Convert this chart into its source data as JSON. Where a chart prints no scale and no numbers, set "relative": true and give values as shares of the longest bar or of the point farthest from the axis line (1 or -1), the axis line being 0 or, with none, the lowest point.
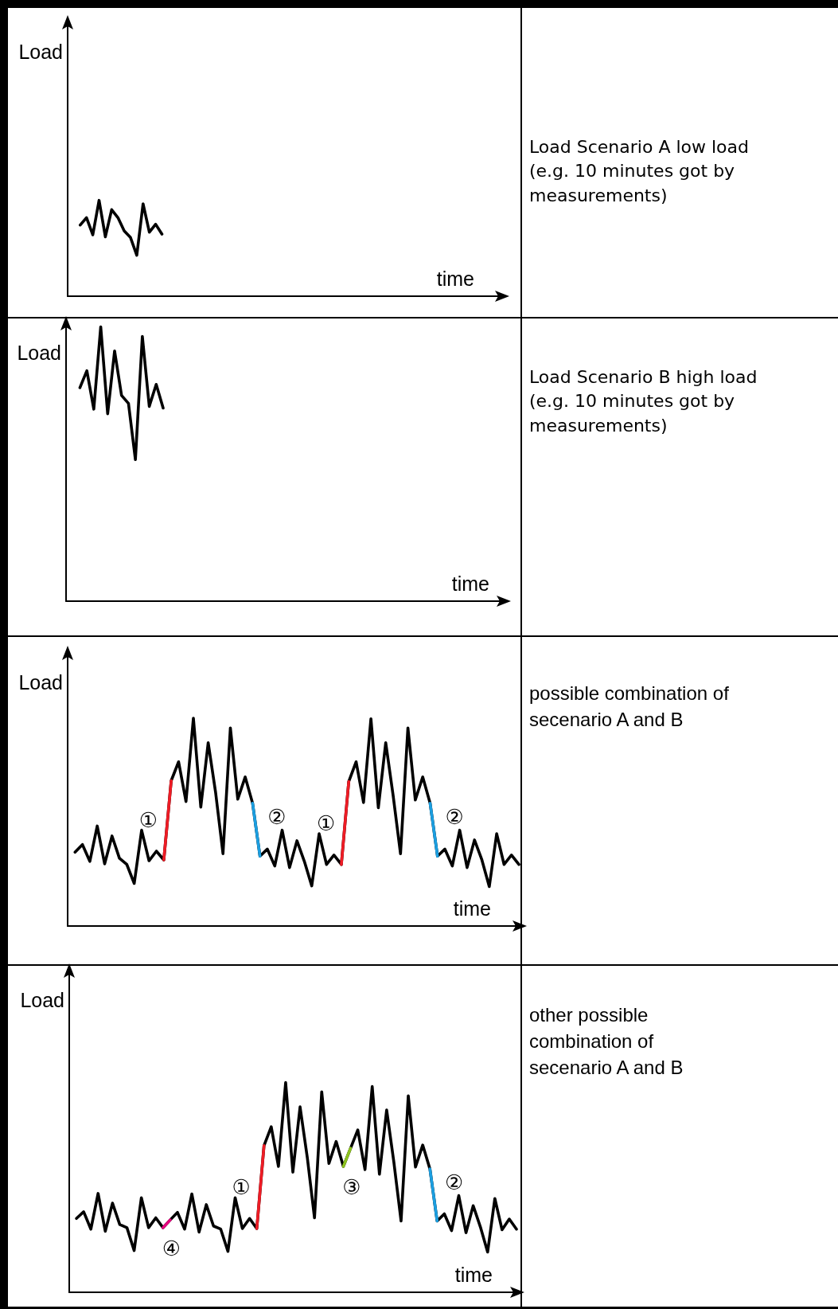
{
  "chart_data": [
    {
      "type": "line",
      "relative": true,
      "xlabel": "time",
      "ylabel": "Load",
      "tick_labels": false,
      "annotations": [
        "Load Scenario A low load (e.g. 10 minutes got by measurements)"
      ],
      "categories": [
        null,
        null,
        null,
        null,
        null,
        null,
        null,
        null,
        null,
        null,
        null,
        null,
        null,
        null,
        null,
        null,
        null,
        null,
        null,
        null,
        null,
        null,
        null,
        null,
        null,
        null,
        null,
        null,
        null,
        null,
        null,
        null,
        null,
        null,
        null,
        null,
        null,
        null,
        null,
        null,
        null,
        null,
        null,
        null,
        null,
        null,
        null,
        null,
        null,
        null,
        null,
        null,
        null,
        null,
        null,
        null,
        null,
        null,
        null,
        null,
        null,
        null,
        null,
        null,
        null,
        null,
        null,
        null,
        null,
        null
      ],
      "series": [
        {
          "color": "#000000",
          "values": [
            null,
            null,
            0.742,
            0.82,
            0.64,
            1,
            0.62,
            0.903,
            0.82,
            0.681,
            0.612,
            0.427,
            0.964,
            0.668,
            0.751,
            0.648,
            null,
            null,
            null,
            null,
            null,
            null,
            null,
            null,
            null,
            null,
            null,
            null,
            null,
            null,
            null,
            null,
            null,
            null,
            null,
            null,
            null,
            null,
            null,
            null,
            null,
            null,
            null,
            null,
            null,
            null,
            null,
            null,
            null,
            null,
            null,
            null,
            null,
            null,
            null,
            null,
            null,
            null,
            null,
            null,
            null,
            null,
            null,
            null,
            null,
            null,
            null,
            null,
            null,
            null
          ]
        }
      ]
    },
    {
      "type": "line",
      "relative": true,
      "xlabel": "time",
      "ylabel": "Load",
      "tick_labels": false,
      "annotations": [
        "Load Scenario B high load (e.g. 10 minutes got by measurements)"
      ],
      "categories": [
        null,
        null,
        null,
        null,
        null,
        null,
        null,
        null,
        null,
        null,
        null,
        null,
        null,
        null,
        null,
        null,
        null,
        null,
        null,
        null,
        null,
        null,
        null,
        null,
        null,
        null,
        null,
        null,
        null,
        null,
        null,
        null,
        null,
        null,
        null,
        null,
        null,
        null,
        null,
        null,
        null,
        null,
        null,
        null,
        null,
        null,
        null,
        null,
        null,
        null,
        null,
        null,
        null,
        null,
        null,
        null,
        null,
        null,
        null,
        null,
        null,
        null,
        null,
        null
      ],
      "series": [
        {
          "color": "#000000",
          "values": [
            null,
            null,
            0.778,
            0.84,
            0.7,
            1,
            0.683,
            0.912,
            0.75,
            0.721,
            0.516,
            0.965,
            0.71,
            0.79,
            0.704,
            null,
            null,
            null,
            null,
            null,
            null,
            null,
            null,
            null,
            null,
            null,
            null,
            null,
            null,
            null,
            null,
            null,
            null,
            null,
            null,
            null,
            null,
            null,
            null,
            null,
            null,
            null,
            null,
            null,
            null,
            null,
            null,
            null,
            null,
            null,
            null,
            null,
            null,
            null,
            null,
            null,
            null,
            null,
            null,
            null,
            null,
            null,
            null,
            null
          ]
        }
      ]
    },
    {
      "type": "line",
      "relative": true,
      "xlabel": "time",
      "ylabel": "Load",
      "tick_labels": false,
      "annotations": [
        "possible combination of secenario A and B"
      ],
      "categories": [
        null,
        null,
        null,
        null,
        null,
        null,
        null,
        null,
        null,
        null,
        null,
        null,
        null,
        null,
        null,
        null,
        null,
        null,
        null,
        null,
        null,
        null,
        null,
        null,
        null,
        null,
        null,
        null,
        null,
        null,
        null,
        null,
        null,
        null,
        null,
        null,
        null,
        null,
        null,
        null,
        null,
        null,
        null,
        null,
        null,
        null,
        null,
        null,
        null,
        null,
        null,
        null,
        null,
        null,
        null,
        null,
        null,
        null,
        null,
        null,
        null,
        null
      ],
      "series": [
        {
          "color": "#000000",
          "values": [
            null,
            0.355,
            0.392,
            0.311,
            0.481,
            0.299,
            0.433,
            0.326,
            0.296,
            0.205,
            0.461,
            0.314,
            0.36,
            0.318,
            0.699,
            0.79,
            0.599,
            1,
            0.572,
            0.882,
            0.643,
            0.348,
            0.953,
            0.61,
            0.717,
            0.591,
            0.336,
            0.37,
            0.289,
            0.461,
            0.281,
            0.41,
            0.311,
            0.193,
            0.444,
            0.296,
            0.341,
            0.296,
            0.695,
            0.79,
            0.594,
            0.997,
            0.569,
            0.882,
            0.628,
            0.348,
            0.953,
            0.606,
            0.717,
            0.591,
            0.336,
            0.37,
            0.289,
            0.461,
            0.281,
            0.414,
            0.318,
            0.19,
            0.444,
            0.296,
            0.341,
            0.296
          ]
        },
        {
          "name": "①",
          "color": "#ee1c25",
          "values": [
            null,
            null,
            null,
            null,
            null,
            null,
            null,
            null,
            null,
            null,
            null,
            null,
            null,
            0.318,
            0.699,
            null,
            null,
            null,
            null,
            null,
            null,
            null,
            null,
            null,
            null,
            null,
            null,
            null,
            null,
            null,
            null,
            null,
            null,
            null,
            null,
            null,
            null,
            0.296,
            0.695,
            null,
            null,
            null,
            null,
            null,
            null,
            null,
            null,
            null,
            null,
            null,
            null,
            null,
            null,
            null,
            null,
            null,
            null,
            null,
            null,
            null,
            null,
            null
          ]
        },
        {
          "name": "②",
          "color": "#1b9ee0",
          "values": [
            null,
            null,
            null,
            null,
            null,
            null,
            null,
            null,
            null,
            null,
            null,
            null,
            null,
            null,
            null,
            null,
            null,
            null,
            null,
            null,
            null,
            null,
            null,
            null,
            null,
            0.591,
            0.336,
            null,
            null,
            null,
            null,
            null,
            null,
            null,
            null,
            null,
            null,
            null,
            null,
            null,
            null,
            null,
            null,
            null,
            null,
            null,
            null,
            null,
            null,
            0.591,
            0.336,
            null,
            null,
            null,
            null,
            null,
            null,
            null,
            null,
            null,
            null,
            null
          ]
        }
      ]
    },
    {
      "type": "line",
      "relative": true,
      "xlabel": "time",
      "ylabel": "Load",
      "tick_labels": false,
      "annotations": [
        "other possible combination of secenario A and B"
      ],
      "categories": [
        null,
        null,
        null,
        null,
        null,
        null,
        null,
        null,
        null,
        null,
        null,
        null,
        null,
        null,
        null,
        null,
        null,
        null,
        null,
        null,
        null,
        null,
        null,
        null,
        null,
        null,
        null,
        null,
        null,
        null,
        null,
        null,
        null,
        null,
        null,
        null,
        null,
        null,
        null,
        null,
        null,
        null,
        null,
        null,
        null,
        null,
        null,
        null,
        null,
        null,
        null,
        null,
        null,
        null,
        null,
        null,
        null,
        null,
        null,
        null,
        null,
        null,
        null
      ],
      "series": [
        {
          "color": "#000000",
          "values": [
            null,
            0.352,
            0.384,
            0.301,
            0.471,
            0.291,
            0.425,
            0.323,
            0.308,
            0.199,
            0.451,
            0.308,
            0.355,
            0.308,
            0.345,
            0.381,
            0.301,
            0.469,
            0.287,
            0.418,
            0.316,
            0.301,
            0.195,
            0.451,
            0.304,
            0.352,
            0.304,
            0.699,
            0.789,
            0.6,
            1,
            0.573,
            0.884,
            0.643,
            0.355,
            0.956,
            0.614,
            0.719,
            0.6,
            0.687,
            0.774,
            0.585,
            0.981,
            0.563,
            0.869,
            0.621,
            0.34,
            0.937,
            0.597,
            0.702,
            0.588,
            0.34,
            0.374,
            0.294,
            0.461,
            0.284,
            0.413,
            0.311,
            0.192,
            0.447,
            0.298,
            0.349,
            0.301
          ]
        },
        {
          "name": "④",
          "color": "#e6007e",
          "values": [
            null,
            null,
            null,
            null,
            null,
            null,
            null,
            null,
            null,
            null,
            null,
            null,
            null,
            0.308,
            0.345,
            null,
            null,
            null,
            null,
            null,
            null,
            null,
            null,
            null,
            null,
            null,
            null,
            null,
            null,
            null,
            null,
            null,
            null,
            null,
            null,
            null,
            null,
            null,
            null,
            null,
            null,
            null,
            null,
            null,
            null,
            null,
            null,
            null,
            null,
            null,
            null,
            null,
            null,
            null,
            null,
            null,
            null,
            null,
            null,
            null,
            null,
            null,
            null
          ]
        },
        {
          "name": "①",
          "color": "#ee1c25",
          "values": [
            null,
            null,
            null,
            null,
            null,
            null,
            null,
            null,
            null,
            null,
            null,
            null,
            null,
            null,
            null,
            null,
            null,
            null,
            null,
            null,
            null,
            null,
            null,
            null,
            null,
            null,
            0.304,
            0.699,
            null,
            null,
            null,
            null,
            null,
            null,
            null,
            null,
            null,
            null,
            null,
            null,
            null,
            null,
            null,
            null,
            null,
            null,
            null,
            null,
            null,
            null,
            null,
            null,
            null,
            null,
            null,
            null,
            null,
            null,
            null,
            null,
            null,
            null,
            null
          ]
        },
        {
          "name": "③",
          "color": "#8dc21f",
          "values": [
            null,
            null,
            null,
            null,
            null,
            null,
            null,
            null,
            null,
            null,
            null,
            null,
            null,
            null,
            null,
            null,
            null,
            null,
            null,
            null,
            null,
            null,
            null,
            null,
            null,
            null,
            null,
            null,
            null,
            null,
            null,
            null,
            null,
            null,
            null,
            null,
            null,
            null,
            0.6,
            0.687,
            null,
            null,
            null,
            null,
            null,
            null,
            null,
            null,
            null,
            null,
            null,
            null,
            null,
            null,
            null,
            null,
            null,
            null,
            null,
            null,
            null,
            null,
            null
          ]
        },
        {
          "name": "②",
          "color": "#1b9ee0",
          "values": [
            null,
            null,
            null,
            null,
            null,
            null,
            null,
            null,
            null,
            null,
            null,
            null,
            null,
            null,
            null,
            null,
            null,
            null,
            null,
            null,
            null,
            null,
            null,
            null,
            null,
            null,
            null,
            null,
            null,
            null,
            null,
            null,
            null,
            null,
            null,
            null,
            null,
            null,
            null,
            null,
            null,
            null,
            null,
            null,
            null,
            null,
            null,
            null,
            null,
            null,
            0.588,
            0.34,
            null,
            null,
            null,
            null,
            null,
            null,
            null,
            null,
            null,
            null,
            null
          ]
        }
      ]
    }
  ]
}
